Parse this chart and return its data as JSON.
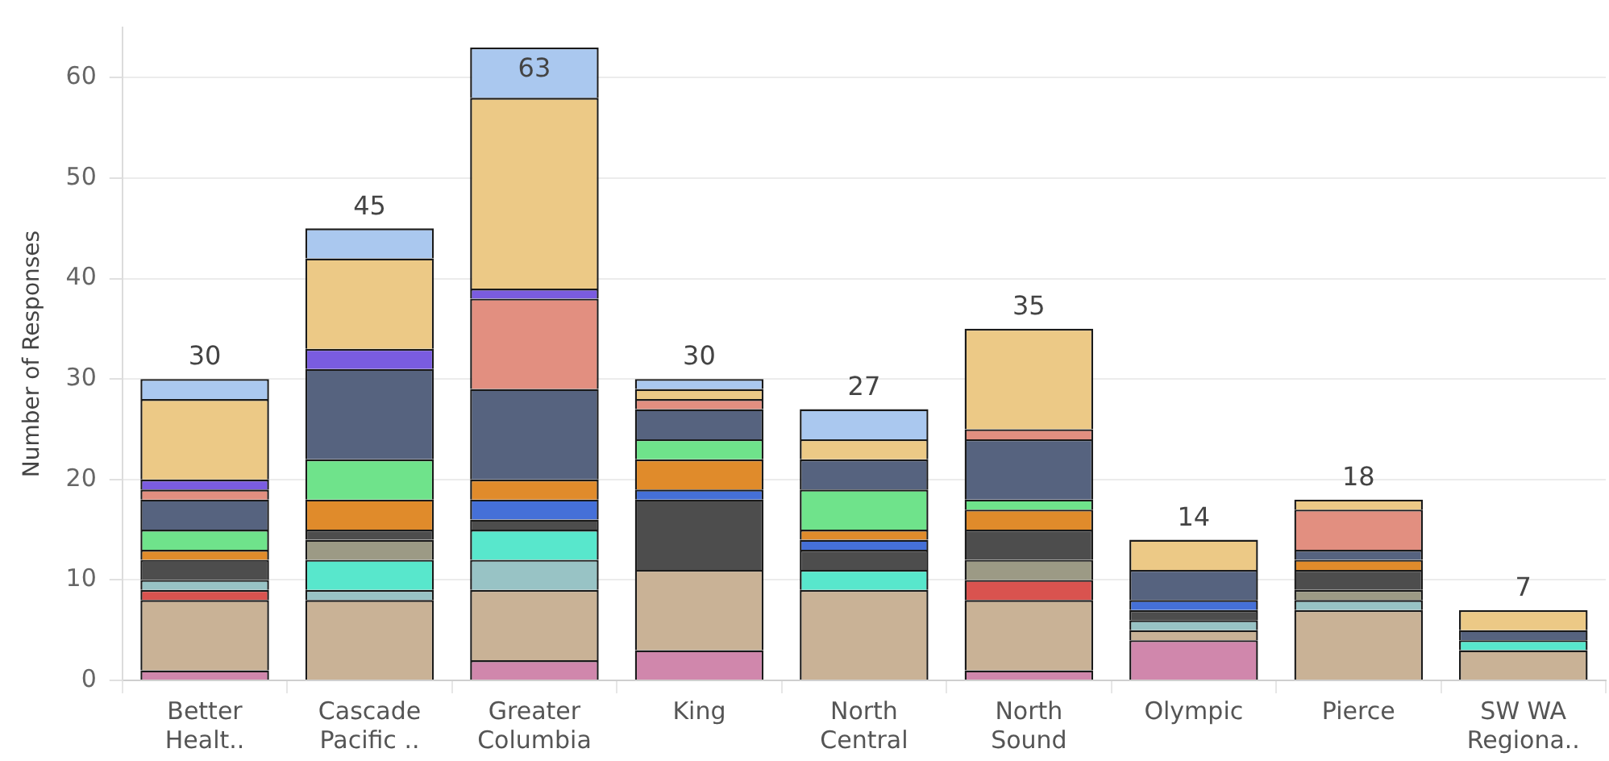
{
  "chart_data": {
    "type": "bar",
    "stacked": true,
    "ylabel": "Number of Responses",
    "categories": [
      "Better\nHealt..",
      "Cascade\nPacific ..",
      "Greater\nColumbia",
      "King",
      "North\nCentral",
      "North\nSound",
      "Olympic",
      "Pierce",
      "SW WA\nRegiona.."
    ],
    "series": [
      {
        "color": "#d087ac",
        "values": [
          1,
          null,
          2,
          3,
          null,
          1,
          4,
          null,
          null
        ]
      },
      {
        "color": "#c9b296",
        "values": [
          7,
          8,
          7,
          8,
          9,
          7,
          1,
          7,
          3
        ]
      },
      {
        "color": "#d9534f",
        "values": [
          1,
          null,
          null,
          null,
          null,
          2,
          null,
          null,
          null
        ]
      },
      {
        "color": "#98c3c5",
        "values": [
          1,
          1,
          3,
          null,
          null,
          null,
          1,
          1,
          null
        ]
      },
      {
        "color": "#58e7cc",
        "values": [
          null,
          3,
          3,
          null,
          2,
          null,
          null,
          null,
          1
        ]
      },
      {
        "color": "#9c9a85",
        "values": [
          null,
          2,
          null,
          null,
          null,
          2,
          null,
          1,
          null
        ]
      },
      {
        "color": "#4d4d4d",
        "values": [
          2,
          1,
          1,
          7,
          2,
          3,
          1,
          2,
          null
        ]
      },
      {
        "color": "#4570d8",
        "values": [
          null,
          null,
          2,
          1,
          1,
          null,
          1,
          null,
          null
        ]
      },
      {
        "color": "#e08b2b",
        "values": [
          1,
          3,
          2,
          3,
          1,
          2,
          null,
          1,
          null
        ]
      },
      {
        "color": "#6fe38b",
        "values": [
          2,
          4,
          null,
          2,
          4,
          1,
          null,
          null,
          null
        ]
      },
      {
        "color": "#56637f",
        "values": [
          3,
          9,
          9,
          3,
          3,
          6,
          3,
          1,
          1
        ]
      },
      {
        "color": "#e28f80",
        "values": [
          1,
          null,
          9,
          1,
          null,
          1,
          null,
          4,
          null
        ]
      },
      {
        "color": "#7a5ce0",
        "values": [
          1,
          2,
          1,
          null,
          null,
          null,
          null,
          null,
          null
        ]
      },
      {
        "color": "#ecc986",
        "values": [
          8,
          9,
          19,
          1,
          2,
          10,
          3,
          1,
          2
        ]
      },
      {
        "color": "#aac8ef",
        "values": [
          2,
          3,
          5,
          1,
          3,
          null,
          null,
          null,
          null
        ]
      }
    ],
    "totals": [
      "30",
      "45",
      "63",
      "30",
      "27",
      "35",
      "14",
      "18",
      "7"
    ],
    "ylim": [
      0,
      65
    ],
    "yticks": [
      0,
      10,
      20,
      30,
      40,
      50,
      60
    ],
    "grid": "y",
    "legend": false
  }
}
